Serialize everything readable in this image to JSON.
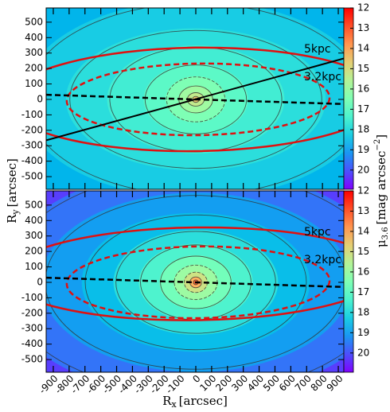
{
  "chart_data": [
    {
      "type": "image",
      "xlim": [
        -945,
        935
      ],
      "ylim": [
        -582,
        592
      ],
      "xticks": [
        -900,
        -800,
        -700,
        -600,
        -500,
        -400,
        -300,
        -200,
        -100,
        0,
        100,
        200,
        300,
        400,
        500,
        600,
        700,
        800,
        900
      ],
      "yticks": [
        -500,
        -400,
        -300,
        -200,
        -100,
        0,
        100,
        200,
        300,
        400,
        500
      ],
      "ylabel": {
        "symbol": "R",
        "sub": "y",
        "unit": "[arcsec]"
      },
      "annotations": [
        "5kpc",
        "3.2kpc"
      ],
      "colorbar": {
        "lim": [
          12,
          20.95
        ],
        "ticks": [
          12,
          13,
          14,
          15,
          16,
          17,
          18,
          19,
          20
        ],
        "label": {
          "symbol": "μ",
          "sub": "3.6",
          "unit": "[mag arcsec",
          "sup": "−2",
          "end": "]"
        }
      }
    },
    {
      "type": "image",
      "xlim": [
        -945,
        935
      ],
      "ylim": [
        -582,
        592
      ],
      "xticks": [
        -900,
        -800,
        -700,
        -600,
        -500,
        -400,
        -300,
        -200,
        -100,
        0,
        100,
        200,
        300,
        400,
        500,
        600,
        700,
        800,
        900
      ],
      "yticks": [
        -500,
        -400,
        -300,
        -200,
        -100,
        0,
        100,
        200,
        300,
        400,
        500
      ],
      "xlabel": {
        "symbol": "R",
        "sub": "x",
        "unit": "[arcsec]"
      },
      "annotations": [
        "5kpc",
        "3.2kpc"
      ],
      "colorbar": {
        "lim": [
          12,
          20.95
        ],
        "ticks": [
          12,
          13,
          14,
          15,
          16,
          17,
          18,
          19,
          20
        ]
      }
    }
  ]
}
